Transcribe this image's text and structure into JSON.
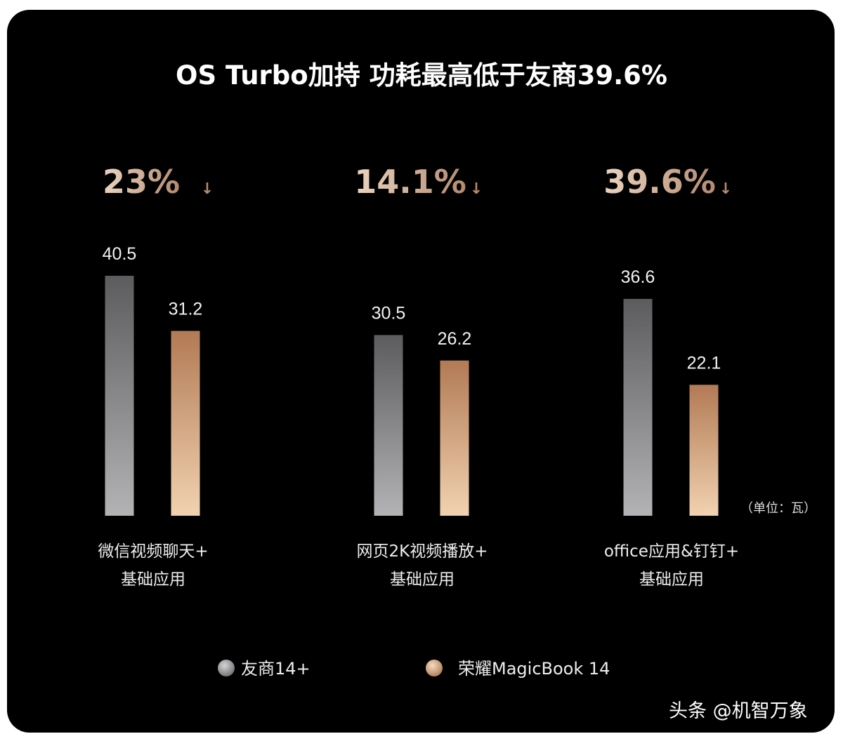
{
  "chart_data": {
    "type": "bar",
    "title": "OS Turbo加持 功耗最高低于友商39.6%",
    "categories": [
      {
        "line1": "微信视频聊天+",
        "line2": "基础应用"
      },
      {
        "line1": "网页2K视频播放+",
        "line2": "基础应用"
      },
      {
        "line1": "office应用&钉钉+",
        "line2": "基础应用"
      }
    ],
    "reductions": [
      "23%",
      "14.1%",
      "39.6%"
    ],
    "reduction_arrow": "↓",
    "series": [
      {
        "name": "友商14+",
        "values": [
          40.5,
          30.5,
          36.6
        ],
        "labels": [
          "40.5",
          "30.5",
          "36.6"
        ],
        "color_top": "#5c5c5e",
        "color_bottom": "#b3b3b6"
      },
      {
        "name": "荣耀MagicBook 14",
        "values": [
          31.2,
          26.2,
          22.1
        ],
        "labels": [
          "31.2",
          "26.2",
          "22.1"
        ],
        "color_top": "#b27a55",
        "color_bottom": "#f1d2b0"
      }
    ],
    "unit_label": "（单位：瓦）",
    "ylim": [
      0,
      40.5
    ],
    "xlabel": "",
    "ylabel": ""
  },
  "colors": {
    "background": "#000000",
    "pct_gradient_left": "#ead4c0",
    "pct_gradient_right": "#b48a6e"
  },
  "watermark": "头条 @机智万象"
}
